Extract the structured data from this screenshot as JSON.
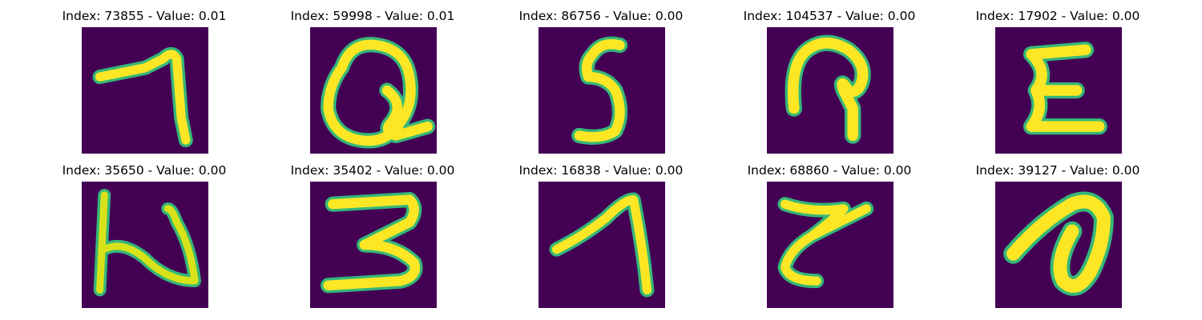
{
  "figure": {
    "background": "#ffffff",
    "cmap": "viridis",
    "bg_color": "#440154",
    "stroke_color": "#fde725",
    "edge_color": "#35b779",
    "panels": [
      {
        "title": "Index: 73855 - Value: 0.01",
        "depicts": "handwritten-glyph-seven"
      },
      {
        "title": "Index: 59998 - Value: 0.01",
        "depicts": "handwritten-glyph-loop"
      },
      {
        "title": "Index: 86756 - Value: 0.00",
        "depicts": "handwritten-glyph-five"
      },
      {
        "title": "Index: 104537 - Value: 0.00",
        "depicts": "handwritten-glyph-hook"
      },
      {
        "title": "Index: 17902 - Value: 0.00",
        "depicts": "handwritten-glyph-sigma"
      },
      {
        "title": "Index: 35650 - Value: 0.00",
        "depicts": "handwritten-glyph-n"
      },
      {
        "title": "Index: 35402 - Value: 0.00",
        "depicts": "handwritten-glyph-three"
      },
      {
        "title": "Index: 16838 - Value: 0.00",
        "depicts": "handwritten-glyph-one"
      },
      {
        "title": "Index: 68860 - Value: 0.00",
        "depicts": "handwritten-glyph-z"
      },
      {
        "title": "Index: 39127 - Value: 0.00",
        "depicts": "handwritten-glyph-a"
      }
    ]
  }
}
